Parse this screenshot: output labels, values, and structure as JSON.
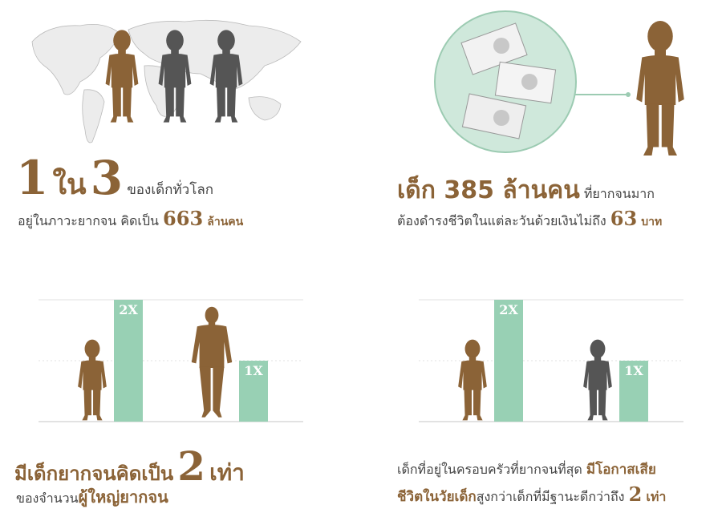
{
  "panel1": {
    "n1": "1",
    "in": "ใน",
    "n3": "3",
    "tail": "ของเด็กทั่วโลก",
    "line2": "อยู่ในภาวะยากจน คิดเป็น",
    "num": "663",
    "unit": "ล้านคน"
  },
  "panel2": {
    "head": "เด็ก 385 ล้านคน",
    "tail": "ที่ยากจนมาก",
    "line2": "ต้องดำรงชีวิตในแต่ละวันด้วยเงินไม่ถึง",
    "num": "63",
    "unit": "บาท"
  },
  "panel3": {
    "head": "มีเด็กยากจนคิดเป็น",
    "num": "2",
    "unit": "เท่า",
    "line2a": "ของจำนวน",
    "line2b": "ผู้ใหญ่ยากจน"
  },
  "panel4": {
    "line1a": "เด็กที่อยู่ในครอบครัวที่ยากจนที่สุด",
    "line1b": "มีโอกาสเสีย",
    "line2a": "ชีวิตในวัยเด็ก",
    "line2b": "สูงกว่าเด็กที่มีฐานะดีกว่าถึง",
    "num": "2",
    "unit": "เท่า"
  },
  "chart_data": [
    {
      "type": "bar",
      "categories": [
        "child",
        "adult"
      ],
      "values": [
        2,
        1
      ],
      "data_labels": [
        "2X",
        "1X"
      ]
    },
    {
      "type": "bar",
      "categories": [
        "poorest",
        "better-off"
      ],
      "values": [
        2,
        1
      ],
      "data_labels": [
        "2X",
        "1X"
      ]
    }
  ],
  "colors": {
    "brown": "#8b6337",
    "gray": "#555555",
    "green": "#98d0b4",
    "circle": "#cfe8db"
  },
  "icons": [
    "world-map",
    "child-silhouette",
    "banknotes",
    "adult-silhouette"
  ]
}
